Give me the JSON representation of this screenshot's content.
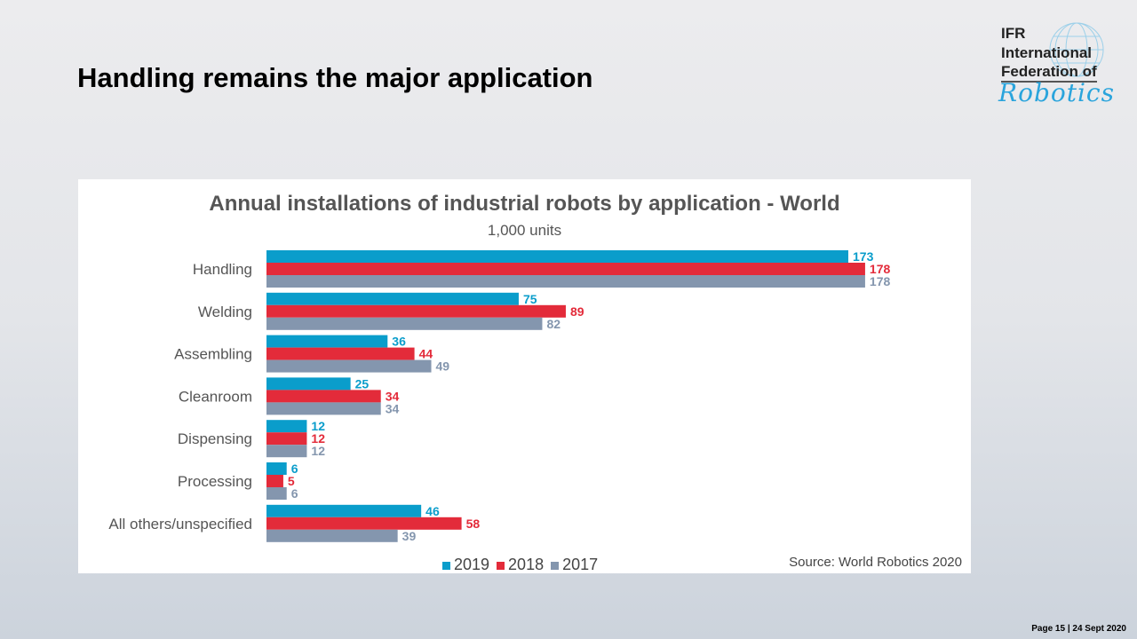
{
  "slide": {
    "title": "Handling remains the major application",
    "page": "Page 15 | 24 Sept 2020"
  },
  "logo": {
    "lines": [
      "IFR",
      "International",
      "Federation of"
    ],
    "script": "Robotics"
  },
  "chart_data": {
    "type": "bar",
    "orientation": "horizontal",
    "title": "Annual installations of industrial robots by application - World",
    "subtitle": "1,000 units",
    "categories": [
      "Handling",
      "Welding",
      "Assembling",
      "Cleanroom",
      "Dispensing",
      "Processing",
      "All others/unspecified"
    ],
    "series": [
      {
        "name": "2019",
        "color": "#0a9dcb",
        "values": [
          173,
          75,
          36,
          25,
          12,
          6,
          46
        ]
      },
      {
        "name": "2018",
        "color": "#e32b3a",
        "values": [
          178,
          89,
          44,
          34,
          12,
          5,
          58
        ]
      },
      {
        "name": "2017",
        "color": "#8496ae",
        "values": [
          178,
          82,
          49,
          34,
          12,
          6,
          39
        ]
      }
    ],
    "data_labels": true,
    "legend": "bottom",
    "grid": false,
    "source": "Source: World Robotics 2020"
  }
}
